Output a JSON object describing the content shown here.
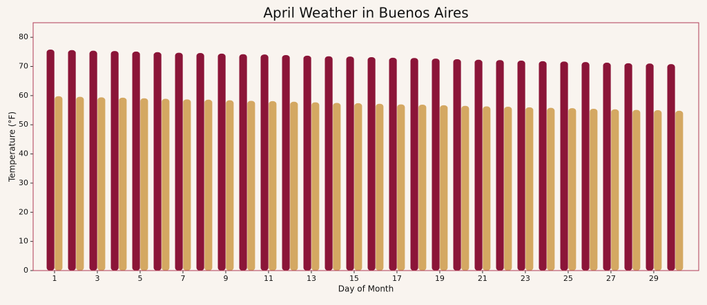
{
  "chart_data": {
    "type": "bar",
    "title": "April Weather in Buenos Aires",
    "x_label": "Day of Month",
    "y_label": "Temperature (°F)",
    "x": [
      1,
      2,
      3,
      4,
      5,
      6,
      7,
      8,
      9,
      10,
      11,
      12,
      13,
      14,
      15,
      16,
      17,
      18,
      19,
      20,
      21,
      22,
      23,
      24,
      25,
      26,
      27,
      28,
      29,
      30
    ],
    "series": [
      {
        "color": "#8b1538",
        "values": [
          75.8,
          75.6,
          75.4,
          75.3,
          75.1,
          74.9,
          74.7,
          74.6,
          74.4,
          74.2,
          74.1,
          73.9,
          73.7,
          73.5,
          73.4,
          73.2,
          73.0,
          72.9,
          72.7,
          72.5,
          72.3,
          72.2,
          72.0,
          71.8,
          71.7,
          71.5,
          71.3,
          71.1,
          71.0,
          70.8
        ]
      },
      {
        "color": "#d4a862",
        "values": [
          59.8,
          59.6,
          59.4,
          59.3,
          59.1,
          58.9,
          58.7,
          58.6,
          58.4,
          58.2,
          58.1,
          57.9,
          57.7,
          57.5,
          57.4,
          57.2,
          57.0,
          56.9,
          56.7,
          56.5,
          56.3,
          56.2,
          56.0,
          55.8,
          55.7,
          55.5,
          55.3,
          55.1,
          55.0,
          54.8
        ]
      }
    ],
    "xlim": [
      0,
      31.1
    ],
    "xticks": [
      1,
      3,
      5,
      7,
      9,
      11,
      13,
      15,
      17,
      19,
      21,
      23,
      25,
      27,
      29
    ],
    "ylim": [
      0,
      85
    ],
    "yticks": [
      0,
      10,
      20,
      30,
      40,
      50,
      60,
      70,
      80
    ],
    "frame_color": "#b03a55"
  }
}
